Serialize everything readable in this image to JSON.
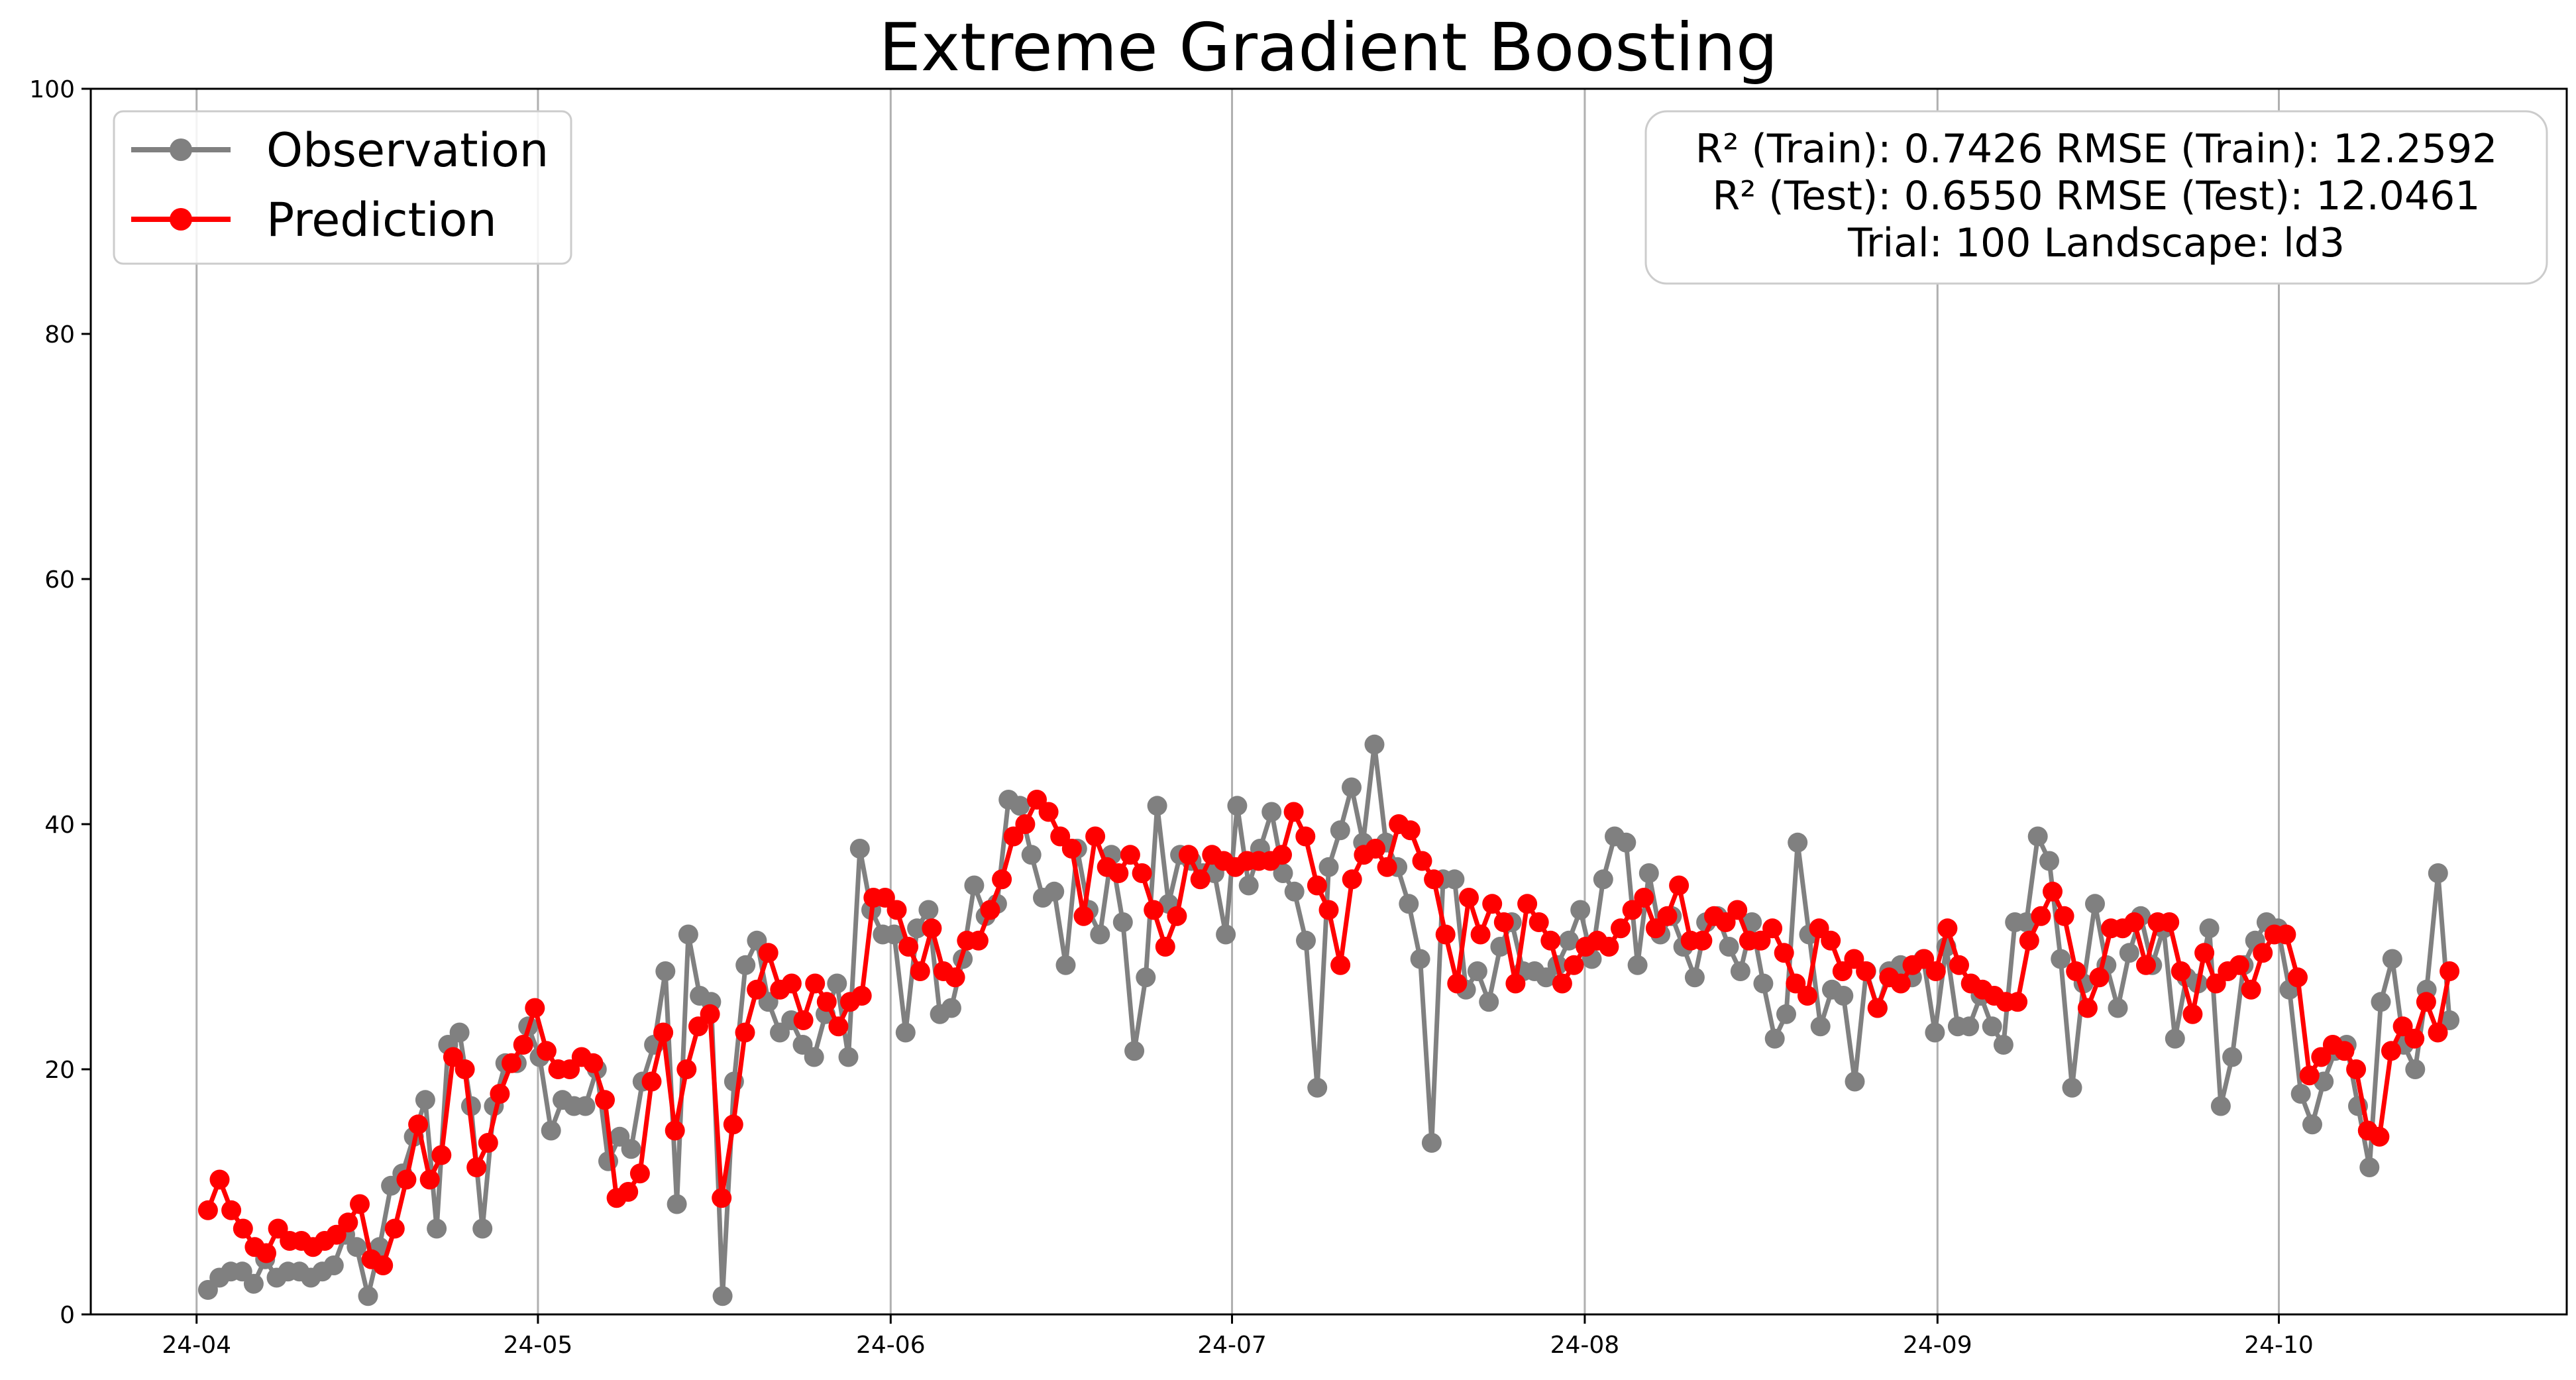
{
  "colors": {
    "observation": "#808080",
    "prediction": "#ff0000",
    "grid": "#b0b0b0",
    "axis": "#000000",
    "box_edge": "#cccccc"
  },
  "chart_data": {
    "type": "line",
    "title": "Extreme Gradient Boosting",
    "xlabel": "",
    "ylabel": "",
    "ylim": [
      0,
      100
    ],
    "yticks": [
      "0",
      "20",
      "40",
      "60",
      "80",
      "100"
    ],
    "x_start": "2024-04-02",
    "x_end": "2024-10-16",
    "xticks": [
      {
        "label": "24-04",
        "date": "2024-04-01"
      },
      {
        "label": "24-05",
        "date": "2024-05-01"
      },
      {
        "label": "24-06",
        "date": "2024-06-01"
      },
      {
        "label": "24-07",
        "date": "2024-07-01"
      },
      {
        "label": "24-08",
        "date": "2024-08-01"
      },
      {
        "label": "24-09",
        "date": "2024-09-01"
      },
      {
        "label": "24-10",
        "date": "2024-10-01"
      }
    ],
    "grid": "vertical",
    "legend_position": "top-left",
    "series": [
      {
        "name": "Observation",
        "values": [
          2.0,
          3.0,
          3.5,
          3.5,
          2.5,
          4.5,
          3.0,
          3.5,
          3.5,
          3.0,
          3.5,
          4.0,
          6.5,
          5.5,
          1.5,
          5.5,
          10.5,
          11.5,
          14.5,
          17.5,
          7.0,
          22.0,
          23.0,
          17.0,
          7.0,
          17.0,
          20.5,
          20.5,
          23.5,
          21.0,
          15.0,
          17.5,
          17.0,
          17.0,
          20.0,
          12.5,
          14.5,
          13.5,
          19.0,
          22.0,
          28.0,
          9.0,
          31.0,
          26.0,
          25.5,
          1.5,
          19.0,
          28.5,
          30.5,
          25.5,
          23.0,
          24.0,
          22.0,
          21.0,
          24.5,
          27.0,
          21.0,
          38.0,
          33.0,
          31.0,
          31.0,
          23.0,
          31.5,
          33.0,
          24.5,
          25.0,
          29.0,
          35.0,
          32.5,
          33.5,
          42.0,
          41.5,
          37.5,
          34.0,
          34.5,
          28.5,
          38.0,
          33.0,
          31.0,
          37.5,
          32.0,
          21.5,
          27.5,
          41.5,
          33.5,
          37.5,
          37.0,
          36.0,
          36.0,
          31.0,
          41.5,
          35.0,
          38.0,
          41.0,
          36.0,
          34.5,
          30.5,
          18.5,
          36.5,
          39.5,
          43.0,
          38.5,
          46.5,
          38.5,
          36.5,
          33.5,
          29.0,
          14.0,
          35.5,
          35.5,
          26.5,
          28.0,
          25.5,
          30.0,
          32.0,
          28.0,
          28.0,
          27.5,
          28.5,
          30.5,
          33.0,
          29.0,
          35.5,
          39.0,
          38.5,
          28.5,
          36.0,
          31.0,
          32.5,
          30.0,
          27.5,
          32.0,
          32.5,
          30.0,
          28.0,
          32.0,
          27.0,
          22.5,
          24.5,
          38.5,
          31.0,
          23.5,
          26.5,
          26.0,
          19.0,
          28.0,
          25.0,
          28.0,
          28.5,
          27.5,
          29.0,
          23.0,
          30.0,
          23.5,
          23.5,
          26.0,
          23.5,
          22.0,
          32.0,
          32.0,
          39.0,
          37.0,
          29.0,
          18.5,
          27.0,
          33.5,
          28.5,
          25.0,
          29.5,
          32.5,
          28.5,
          31.5,
          22.5,
          27.5,
          27.0,
          31.5,
          17.0,
          21.0,
          28.5,
          30.5,
          32.0,
          31.5,
          26.5,
          18.0,
          15.5,
          19.0,
          21.5,
          22.0,
          17.0,
          12.0,
          25.5,
          29.0,
          22.0,
          20.0,
          26.5,
          36.0,
          24.0
        ]
      },
      {
        "name": "Prediction",
        "values": [
          8.5,
          11.0,
          8.5,
          7.0,
          5.5,
          5.0,
          7.0,
          6.0,
          6.0,
          5.5,
          6.0,
          6.5,
          7.5,
          9.0,
          4.5,
          4.0,
          7.0,
          11.0,
          15.5,
          11.0,
          13.0,
          21.0,
          20.0,
          12.0,
          14.0,
          18.0,
          20.5,
          22.0,
          25.0,
          21.5,
          20.0,
          20.0,
          21.0,
          20.5,
          17.5,
          9.5,
          10.0,
          11.5,
          19.0,
          23.0,
          15.0,
          20.0,
          23.5,
          24.5,
          9.5,
          15.5,
          23.0,
          26.5,
          29.5,
          26.5,
          27.0,
          24.0,
          27.0,
          25.5,
          23.5,
          25.5,
          26.0,
          34.0,
          34.0,
          33.0,
          30.0,
          28.0,
          31.5,
          28.0,
          27.5,
          30.5,
          30.5,
          33.0,
          35.5,
          39.0,
          40.0,
          42.0,
          41.0,
          39.0,
          38.0,
          32.5,
          39.0,
          36.5,
          36.0,
          37.5,
          36.0,
          33.0,
          30.0,
          32.5,
          37.5,
          35.5,
          37.5,
          37.0,
          36.5,
          37.0,
          37.0,
          37.0,
          37.5,
          41.0,
          39.0,
          35.0,
          33.0,
          28.5,
          35.5,
          37.5,
          38.0,
          36.5,
          40.0,
          39.5,
          37.0,
          35.5,
          31.0,
          27.0,
          34.0,
          31.0,
          33.5,
          32.0,
          27.0,
          33.5,
          32.0,
          30.5,
          27.0,
          28.5,
          30.0,
          30.5,
          30.0,
          31.5,
          33.0,
          34.0,
          31.5,
          32.5,
          35.0,
          30.5,
          30.5,
          32.5,
          32.0,
          33.0,
          30.5,
          30.5,
          31.5,
          29.5,
          27.0,
          26.0,
          31.5,
          30.5,
          28.0,
          29.0,
          28.0,
          25.0,
          27.5,
          27.0,
          28.5,
          29.0,
          28.0,
          31.5,
          28.5,
          27.0,
          26.5,
          26.0,
          25.5,
          25.5,
          30.5,
          32.5,
          34.5,
          32.5,
          28.0,
          25.0,
          27.5,
          31.5,
          31.5,
          32.0,
          28.5,
          32.0,
          32.0,
          28.0,
          24.5,
          29.5,
          27.0,
          28.0,
          28.5,
          26.5,
          29.5,
          31.0,
          31.0,
          27.5,
          19.5,
          21.0,
          22.0,
          21.5,
          20.0,
          15.0,
          14.5,
          21.5,
          23.5,
          22.5,
          25.5,
          23.0,
          28.0
        ]
      }
    ]
  },
  "metrics": {
    "line1": "R² (Train): 0.7426  RMSE (Train): 12.2592",
    "line2": "R² (Test): 0.6550  RMSE (Test): 12.0461",
    "line3": "Trial: 100  Landscape: ld3"
  }
}
